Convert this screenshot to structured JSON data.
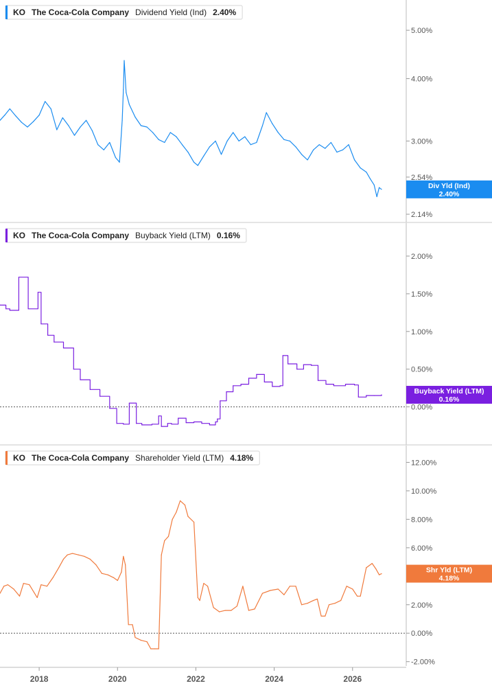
{
  "chart_data": [
    {
      "type": "line",
      "ticker": "KO",
      "company": "The Coca-Cola Company",
      "metric": "Dividend Yield (Ind)",
      "current_value": "2.40%",
      "color": "#1a8cf0",
      "y_scale": "log",
      "ylim": [
        2.1,
        5.5
      ],
      "y_ticks": [
        {
          "value": 2.14,
          "label": "2.14%"
        },
        {
          "value": 2.54,
          "label": "2.54%"
        },
        {
          "value": 3.0,
          "label": "3.00%"
        },
        {
          "value": 4.0,
          "label": "4.00%"
        },
        {
          "value": 5.0,
          "label": "5.00%"
        }
      ],
      "badge": {
        "line1": "Div Yld (Ind)",
        "line2": "2.40%",
        "value": 2.4
      },
      "series": [
        {
          "x": [
            2017.0,
            2017.12,
            2017.25,
            2017.4,
            2017.55,
            2017.7,
            2017.85,
            2018.0,
            2018.15,
            2018.3,
            2018.45,
            2018.6,
            2018.75,
            2018.9,
            2019.05,
            2019.2,
            2019.35,
            2019.5,
            2019.65,
            2019.8,
            2019.95,
            2020.05,
            2020.12,
            2020.15,
            2020.17,
            2020.22,
            2020.3,
            2020.45,
            2020.6,
            2020.75,
            2020.9,
            2021.05,
            2021.2,
            2021.35,
            2021.5,
            2021.65,
            2021.8,
            2021.95,
            2022.05,
            2022.2,
            2022.35,
            2022.5,
            2022.65,
            2022.8,
            2022.95,
            2023.1,
            2023.25,
            2023.4,
            2023.55,
            2023.7,
            2023.8,
            2023.95,
            2024.1,
            2024.25,
            2024.4,
            2024.55,
            2024.7,
            2024.85,
            2025.0,
            2025.15,
            2025.3,
            2025.45,
            2025.6,
            2025.75,
            2025.9,
            2026.05,
            2026.2,
            2026.35,
            2026.45,
            2026.55,
            2026.62,
            2026.68,
            2026.74
          ],
          "values": [
            3.3,
            3.38,
            3.48,
            3.37,
            3.27,
            3.2,
            3.28,
            3.38,
            3.6,
            3.48,
            3.16,
            3.34,
            3.22,
            3.08,
            3.2,
            3.3,
            3.15,
            2.95,
            2.88,
            2.98,
            2.78,
            2.72,
            3.3,
            3.8,
            4.35,
            3.75,
            3.55,
            3.35,
            3.22,
            3.2,
            3.12,
            3.02,
            2.98,
            3.12,
            3.06,
            2.95,
            2.85,
            2.72,
            2.68,
            2.8,
            2.92,
            3.0,
            2.82,
            3.0,
            3.12,
            3.0,
            3.06,
            2.95,
            2.98,
            3.22,
            3.42,
            3.25,
            3.12,
            3.02,
            3.0,
            2.92,
            2.82,
            2.75,
            2.88,
            2.95,
            2.9,
            2.98,
            2.85,
            2.88,
            2.95,
            2.75,
            2.65,
            2.6,
            2.52,
            2.45,
            2.32,
            2.42,
            2.4
          ]
        }
      ]
    },
    {
      "type": "line",
      "ticker": "KO",
      "company": "The Coca-Cola Company",
      "metric": "Buyback Yield (LTM)",
      "current_value": "0.16%",
      "color": "#7a1fe0",
      "ylim": [
        -0.45,
        2.1
      ],
      "y_ticks": [
        {
          "value": 0.0,
          "label": "0.00%"
        },
        {
          "value": 0.5,
          "label": "0.50%"
        },
        {
          "value": 1.0,
          "label": "1.00%"
        },
        {
          "value": 1.5,
          "label": "1.50%"
        },
        {
          "value": 2.0,
          "label": "2.00%"
        }
      ],
      "zero_line": true,
      "badge": {
        "line1": "Buyback Yield (LTM)",
        "line2": "0.16%",
        "value": 0.16
      },
      "series": [
        {
          "step": true,
          "x": [
            2017.0,
            2017.15,
            2017.25,
            2017.48,
            2017.72,
            2017.97,
            2018.05,
            2018.22,
            2018.38,
            2018.62,
            2018.88,
            2019.05,
            2019.3,
            2019.55,
            2019.8,
            2019.98,
            2020.15,
            2020.3,
            2020.48,
            2020.62,
            2020.88,
            2021.05,
            2021.12,
            2021.28,
            2021.38,
            2021.55,
            2021.75,
            2021.95,
            2022.15,
            2022.35,
            2022.5,
            2022.55,
            2022.62,
            2022.78,
            2022.95,
            2023.15,
            2023.35,
            2023.55,
            2023.75,
            2023.95,
            2024.15,
            2024.22,
            2024.35,
            2024.58,
            2024.75,
            2024.95,
            2025.12,
            2025.32,
            2025.52,
            2025.82,
            2026.05,
            2026.15,
            2026.35,
            2026.55,
            2026.74
          ],
          "values": [
            1.35,
            1.3,
            1.28,
            1.72,
            1.3,
            1.52,
            1.1,
            0.95,
            0.86,
            0.78,
            0.5,
            0.36,
            0.23,
            0.14,
            -0.02,
            -0.22,
            -0.23,
            0.05,
            -0.22,
            -0.24,
            -0.23,
            -0.12,
            -0.26,
            -0.22,
            -0.23,
            -0.15,
            -0.21,
            -0.2,
            -0.22,
            -0.24,
            -0.2,
            -0.16,
            0.08,
            0.2,
            0.28,
            0.3,
            0.38,
            0.43,
            0.33,
            0.27,
            0.28,
            0.68,
            0.57,
            0.5,
            0.56,
            0.55,
            0.35,
            0.3,
            0.28,
            0.3,
            0.29,
            0.13,
            0.15,
            0.15,
            0.16
          ]
        }
      ]
    },
    {
      "type": "line",
      "ticker": "KO",
      "company": "The Coca-Cola Company",
      "metric": "Shareholder Yield (LTM)",
      "current_value": "4.18%",
      "color": "#f07a3c",
      "ylim": [
        -2.4,
        12.6
      ],
      "y_ticks": [
        {
          "value": -2.0,
          "label": "-2.00%"
        },
        {
          "value": 0.0,
          "label": "0.00%"
        },
        {
          "value": 2.0,
          "label": "2.00%"
        },
        {
          "value": 4.0,
          "label": "4.00%"
        },
        {
          "value": 6.0,
          "label": "6.00%"
        },
        {
          "value": 8.0,
          "label": "8.00%"
        },
        {
          "value": 10.0,
          "label": "10.00%"
        },
        {
          "value": 12.0,
          "label": "12.00%"
        }
      ],
      "zero_line": true,
      "badge": {
        "line1": "Shr Yld (LTM)",
        "line2": "4.18%",
        "value": 4.18
      },
      "series": [
        {
          "x": [
            2017.0,
            2017.1,
            2017.2,
            2017.35,
            2017.5,
            2017.6,
            2017.75,
            2017.95,
            2018.05,
            2018.2,
            2018.35,
            2018.5,
            2018.62,
            2018.72,
            2018.85,
            2019.0,
            2019.15,
            2019.3,
            2019.45,
            2019.6,
            2019.75,
            2019.9,
            2020.0,
            2020.1,
            2020.15,
            2020.2,
            2020.28,
            2020.38,
            2020.45,
            2020.6,
            2020.75,
            2020.85,
            2020.95,
            2021.05,
            2021.12,
            2021.2,
            2021.3,
            2021.4,
            2021.5,
            2021.6,
            2021.72,
            2021.8,
            2021.95,
            2022.05,
            2022.1,
            2022.2,
            2022.3,
            2022.45,
            2022.6,
            2022.75,
            2022.9,
            2023.05,
            2023.2,
            2023.35,
            2023.5,
            2023.7,
            2023.9,
            2024.1,
            2024.25,
            2024.4,
            2024.55,
            2024.7,
            2024.85,
            2025.0,
            2025.1,
            2025.2,
            2025.3,
            2025.4,
            2025.55,
            2025.7,
            2025.85,
            2026.0,
            2026.12,
            2026.2,
            2026.35,
            2026.5,
            2026.6,
            2026.68,
            2026.74
          ],
          "values": [
            2.8,
            3.3,
            3.4,
            3.1,
            2.6,
            3.5,
            3.4,
            2.5,
            3.4,
            3.3,
            3.9,
            4.6,
            5.2,
            5.5,
            5.6,
            5.5,
            5.4,
            5.2,
            4.8,
            4.2,
            4.1,
            3.9,
            3.7,
            4.3,
            5.4,
            4.8,
            0.6,
            0.6,
            -0.3,
            -0.5,
            -0.6,
            -1.1,
            -1.1,
            -1.1,
            5.5,
            6.5,
            6.8,
            8.0,
            8.5,
            9.3,
            9.0,
            8.2,
            7.8,
            2.5,
            2.3,
            3.5,
            3.3,
            1.8,
            1.5,
            1.6,
            1.6,
            1.9,
            3.3,
            1.6,
            1.7,
            2.8,
            3.0,
            3.1,
            2.7,
            3.3,
            3.3,
            2.0,
            2.1,
            2.3,
            2.4,
            1.2,
            1.2,
            2.0,
            2.1,
            2.3,
            3.3,
            3.1,
            2.6,
            2.6,
            4.6,
            4.9,
            4.5,
            4.1,
            4.18
          ]
        }
      ]
    }
  ],
  "x_axis": {
    "range": [
      2017.0,
      2027.3
    ],
    "ticks": [
      {
        "value": 2018,
        "label": "2018"
      },
      {
        "value": 2020,
        "label": "2020"
      },
      {
        "value": 2022,
        "label": "2022"
      },
      {
        "value": 2024,
        "label": "2024"
      },
      {
        "value": 2026,
        "label": "2026"
      }
    ]
  },
  "theme": {
    "background": "#ffffff",
    "separator": "#c8c8c8",
    "tick_text": "#555555",
    "zero_line": "#555555"
  }
}
